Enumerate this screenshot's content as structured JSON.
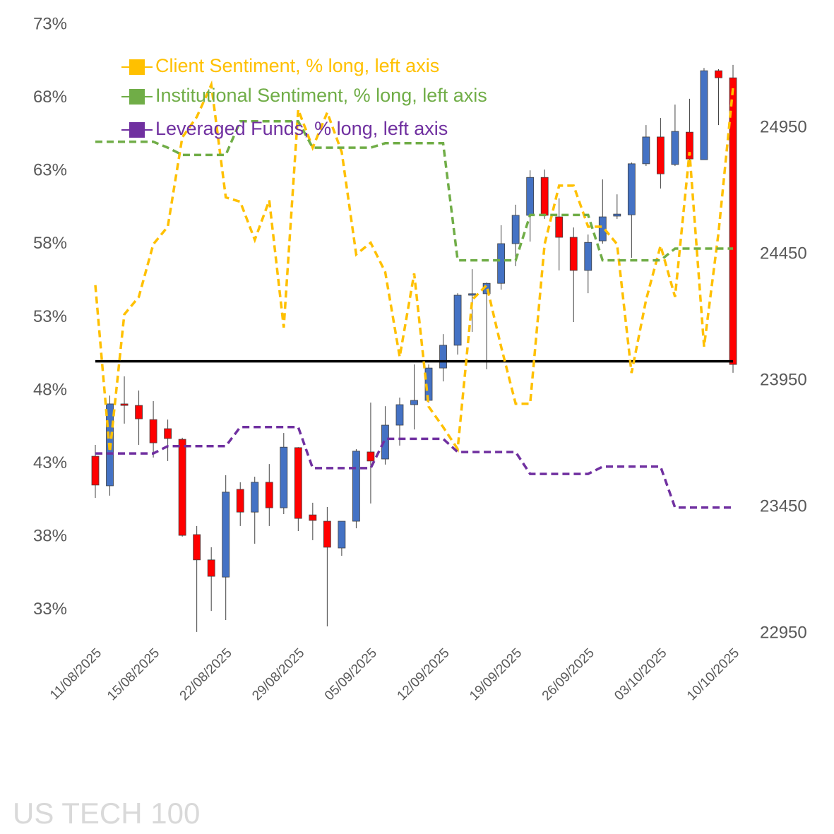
{
  "chart_data": {
    "type": "candlestick",
    "watermark": "US TECH 100",
    "categories": [
      "11/08/2025",
      null,
      null,
      null,
      "15/08/2025",
      null,
      null,
      null,
      null,
      "22/08/2025",
      null,
      null,
      null,
      null,
      "29/08/2025",
      null,
      null,
      null,
      null,
      "05/09/2025",
      null,
      null,
      null,
      null,
      "12/09/2025",
      null,
      null,
      null,
      null,
      "19/09/2025",
      null,
      null,
      null,
      null,
      "26/09/2025",
      null,
      null,
      null,
      null,
      "03/10/2025",
      null,
      null,
      null,
      null,
      "10/10/2025"
    ],
    "open": [
      23651,
      23534,
      23858,
      23852,
      23796,
      23760,
      23718,
      23341,
      23241,
      23173,
      23520,
      23430,
      23548,
      23447,
      23685,
      23419,
      23394,
      23288,
      23394,
      23668,
      23640,
      23774,
      23855,
      23872,
      24000,
      24090,
      24288,
      24294,
      24335,
      24492,
      24604,
      24754,
      24598,
      24517,
      24386,
      24503,
      24601,
      24606,
      24808,
      24914,
      24805,
      24933,
      24824,
      25176,
      25148
    ],
    "high": [
      23696,
      23891,
      23967,
      23911,
      23869,
      23796,
      23724,
      23375,
      23291,
      23576,
      23548,
      23570,
      23620,
      23743,
      23687,
      23467,
      23450,
      23394,
      23679,
      23863,
      23849,
      23883,
      24014,
      24014,
      24134,
      24296,
      24391,
      24338,
      24565,
      24646,
      24782,
      24785,
      24671,
      24556,
      24528,
      24746,
      24687,
      24813,
      24961,
      24989,
      25042,
      25065,
      25187,
      25182,
      25199
    ],
    "low": [
      23486,
      23495,
      23780,
      23696,
      23646,
      23632,
      23333,
      22956,
      23039,
      23003,
      23375,
      23305,
      23375,
      23422,
      23355,
      23319,
      22978,
      23257,
      23366,
      23464,
      23618,
      23693,
      23757,
      23863,
      23947,
      24053,
      24143,
      23995,
      24310,
      24403,
      24500,
      24590,
      24386,
      24182,
      24296,
      24492,
      24590,
      24436,
      24799,
      24710,
      24799,
      24824,
      24824,
      24961,
      23981
    ],
    "close": [
      23537,
      23858,
      23852,
      23799,
      23704,
      23721,
      23338,
      23241,
      23176,
      23509,
      23430,
      23548,
      23447,
      23687,
      23405,
      23397,
      23291,
      23394,
      23671,
      23632,
      23774,
      23855,
      23872,
      24000,
      24090,
      24288,
      24294,
      24335,
      24492,
      24604,
      24754,
      24604,
      24517,
      24386,
      24497,
      24598,
      24609,
      24808,
      24914,
      24768,
      24936,
      24827,
      25176,
      25148,
      24014
    ],
    "up_color": "#4472c4",
    "down_color": "#ff0000",
    "candle_axis": "y2",
    "series": [
      {
        "name": "Client Sentiment, % long, left axis",
        "color": "#ffc000",
        "dashed": true,
        "values": [
          55.2,
          43.8,
          53.2,
          54.4,
          58.0,
          59.2,
          65.3,
          66.7,
          68.9,
          61.2,
          60.9,
          58.3,
          61.0,
          52.3,
          67.2,
          64.6,
          67.0,
          64.3,
          57.3,
          58.1,
          56.1,
          50.3,
          56.0,
          46.9,
          45.5,
          44.0,
          54.2,
          55.2,
          51.0,
          47.1,
          47.1,
          58.0,
          62.0,
          62.0,
          59.2,
          59.2,
          58.0,
          49.2,
          54.2,
          57.9,
          54.4,
          64.3,
          51.0,
          58.8,
          68.7
        ]
      },
      {
        "name": "Institutional Sentiment, % long, left axis",
        "color": "#70ad47",
        "dashed": true,
        "values": [
          65.0,
          65.0,
          65.0,
          65.0,
          65.0,
          64.6,
          64.1,
          64.1,
          64.1,
          64.1,
          66.4,
          66.4,
          66.4,
          66.4,
          66.4,
          64.6,
          64.6,
          64.6,
          64.6,
          64.6,
          64.9,
          64.9,
          64.9,
          64.9,
          64.9,
          56.9,
          56.9,
          56.9,
          56.9,
          56.9,
          60.0,
          60.0,
          60.0,
          60.0,
          60.0,
          56.9,
          56.9,
          56.9,
          56.9,
          56.9,
          57.7,
          57.7,
          57.7,
          57.7,
          57.7
        ]
      },
      {
        "name": "Leveraged Funds, % long, left axis",
        "color": "#7030a0",
        "dashed": true,
        "values": [
          43.7,
          43.7,
          43.7,
          43.7,
          43.7,
          44.2,
          44.2,
          44.2,
          44.2,
          44.2,
          45.5,
          45.5,
          45.5,
          45.5,
          45.5,
          42.7,
          42.7,
          42.7,
          42.7,
          42.7,
          44.7,
          44.7,
          44.7,
          44.7,
          44.7,
          43.8,
          43.8,
          43.8,
          43.8,
          43.8,
          42.3,
          42.3,
          42.3,
          42.3,
          42.3,
          42.8,
          42.8,
          42.8,
          42.8,
          42.8,
          40.0,
          40.0,
          40.0,
          40.0,
          40.0
        ]
      }
    ],
    "reference_line": {
      "value": 50,
      "color": "#000000"
    },
    "ylim": [
      31.4,
      73
    ],
    "yticks": [
      {
        "value": 73,
        "label": "73%"
      },
      {
        "value": 68,
        "label": "68%"
      },
      {
        "value": 63,
        "label": "63%"
      },
      {
        "value": 58,
        "label": "58%"
      },
      {
        "value": 53,
        "label": "53%"
      },
      {
        "value": 48,
        "label": "48%"
      },
      {
        "value": 43,
        "label": "43%"
      },
      {
        "value": 38,
        "label": "38%"
      },
      {
        "value": 33,
        "label": "33%"
      }
    ],
    "y2lim": [
      22950,
      25358
    ],
    "y2ticks": [
      24950,
      24450,
      23950,
      23450,
      22950
    ],
    "grid": false
  }
}
